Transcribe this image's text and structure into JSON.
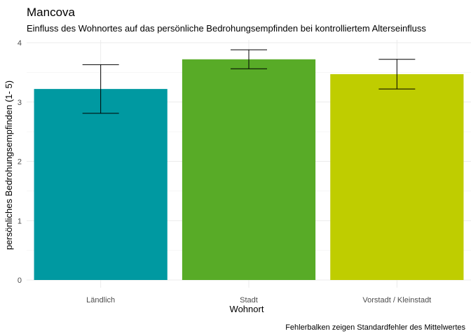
{
  "chart_data": {
    "type": "bar",
    "title": "Mancova",
    "subtitle": "Einfluss des Wohnortes auf das persönliche Bedrohungsempfinden bei kontrolliertem Alterseinfluss",
    "xlabel": "Wohnort",
    "ylabel": "persönliches Bedrohungsempfinden (1- 5)",
    "caption": "Fehlerbalken zeigen Standardfehler des Mittelwertes",
    "categories": [
      "Ländlich",
      "Stadt",
      "Vorstadt / Kleinstadt"
    ],
    "values": [
      3.22,
      3.72,
      3.47
    ],
    "error_low": [
      2.81,
      3.56,
      3.22
    ],
    "error_high": [
      3.63,
      3.88,
      3.72
    ],
    "colors": [
      "#0099a1",
      "#58ab27",
      "#bfcd00"
    ],
    "ylim": [
      0,
      4
    ],
    "yticks": [
      "0",
      "1",
      "2",
      "3",
      "4"
    ],
    "grid": true,
    "legend": "none"
  }
}
